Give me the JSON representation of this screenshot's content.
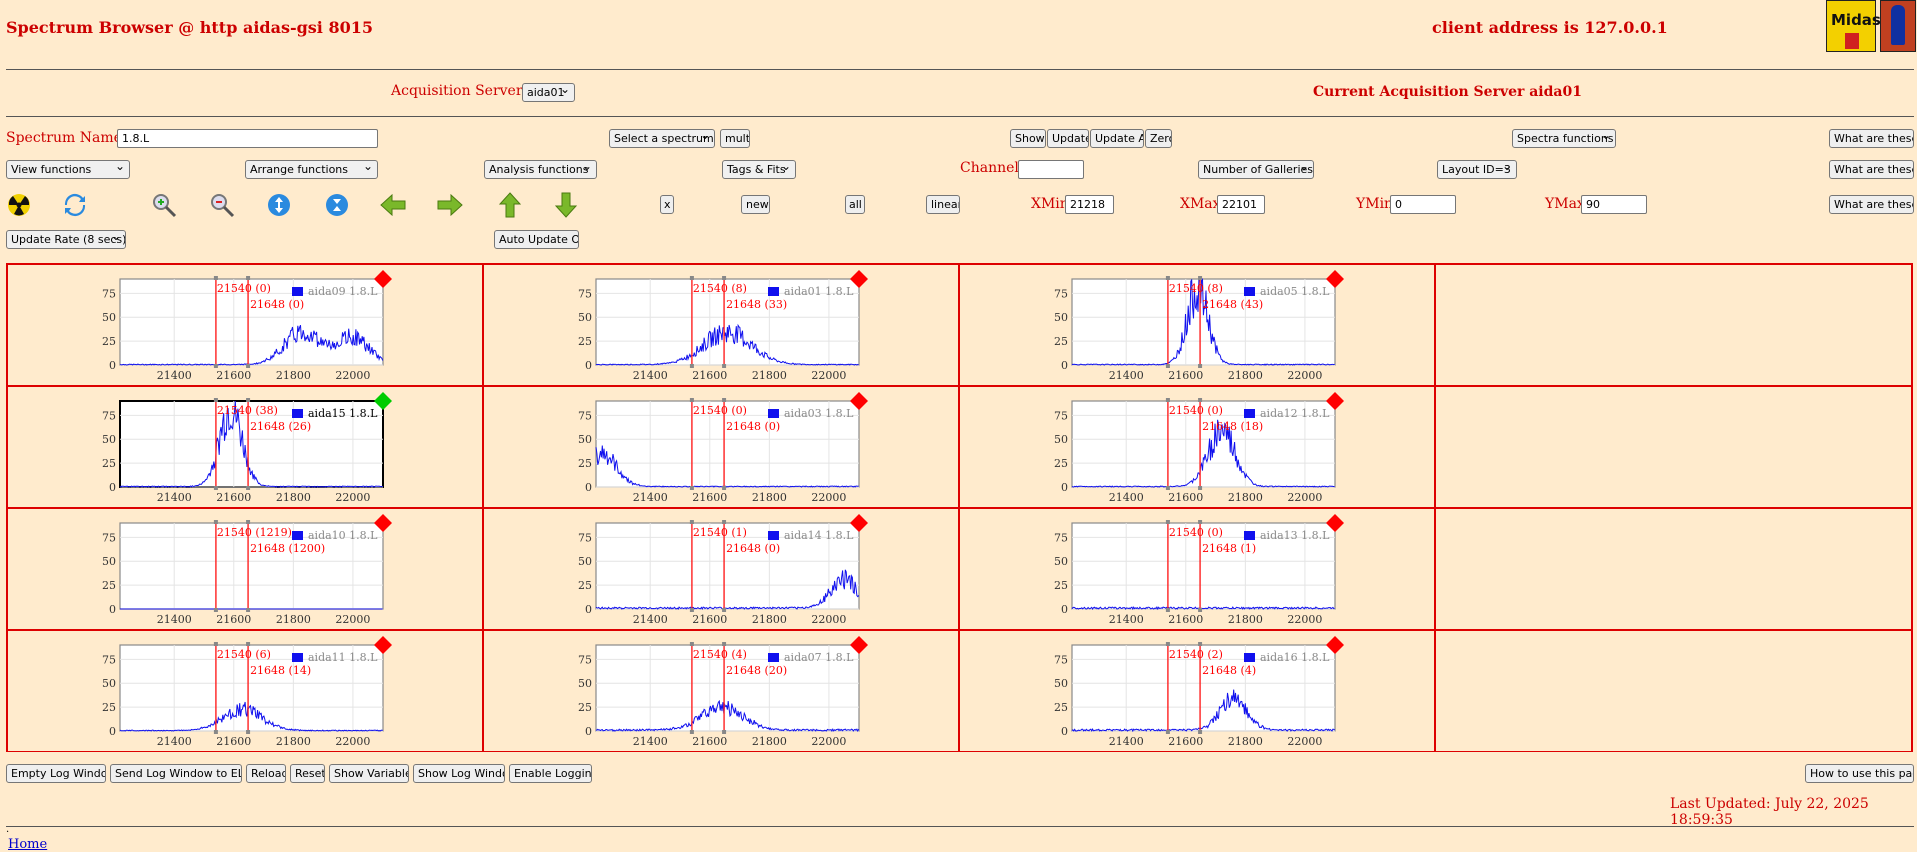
{
  "header": {
    "title": "Spectrum Browser @ http aidas-gsi 8015",
    "client_address": "client address is 127.0.0.1",
    "logo_text": "Midas"
  },
  "servers": {
    "label": "Acquisition Servers",
    "selected": "aida01",
    "current": "Current Acquisition Server aida01"
  },
  "row1": {
    "spectrum_name_label": "Spectrum Name:",
    "spectrum_name_value": "1.8.L",
    "select_spectrum": "Select a spectrum",
    "multi": "multi",
    "show": "Show",
    "update": "Update",
    "update_all": "Update All",
    "zero": "Zero",
    "spectra_functions": "Spectra functions",
    "what": "What are these?"
  },
  "row2": {
    "view_functions": "View functions",
    "arrange_functions": "Arrange functions",
    "analysis_functions": "Analysis functions",
    "tags_fits": "Tags & Fits",
    "channel_label": "Channel:",
    "channel_value": "",
    "number_of_galleries": "Number of Galleries",
    "layout": "Layout ID=3",
    "what": "What are these?"
  },
  "row3": {
    "x": "x",
    "new": "new",
    "all": "all",
    "linear": "linear",
    "xmin_label": "XMin",
    "xmin_value": "21218",
    "xmax_label": "XMax",
    "xmax_value": "22101",
    "ymin_label": "YMin",
    "ymin_value": "0",
    "ymax_label": "YMax",
    "ymax_value": "90",
    "what": "What are these?"
  },
  "row4": {
    "update_rate": "Update Rate (8 secs)",
    "auto_update": "Auto Update ON"
  },
  "chart_data": {
    "type": "line",
    "xlim": [
      21218,
      22101
    ],
    "ylim": [
      0,
      90
    ],
    "x_ticks": [
      "21400",
      "21600",
      "21800",
      "22000"
    ],
    "y_ticks": [
      "0",
      "25",
      "50",
      "75"
    ],
    "marker1_x": 21540,
    "marker2_x": 21648,
    "series": [
      {
        "name": "aida09 1.8.L",
        "m1": "21540 (0)",
        "m2": "21648 (0)",
        "status": "#ff0000",
        "selected": false,
        "peaks": [
          {
            "c": 21830,
            "s": 60,
            "a": 34
          },
          {
            "c": 22000,
            "s": 55,
            "a": 28
          }
        ],
        "base": 1
      },
      {
        "name": "aida01 1.8.L",
        "m1": "21540 (8)",
        "m2": "21648 (33)",
        "status": "#ff0000",
        "selected": false,
        "peaks": [
          {
            "c": 21660,
            "s": 80,
            "a": 34
          }
        ],
        "base": 1
      },
      {
        "name": "aida05 1.8.L",
        "m1": "21540 (8)",
        "m2": "21648 (43)",
        "status": "#ff0000",
        "selected": false,
        "peaks": [
          {
            "c": 21640,
            "s": 35,
            "a": 80
          }
        ],
        "base": 1
      },
      {
        "name": "aida15 1.8.L",
        "m1": "21540 (38)",
        "m2": "21648 (26)",
        "status": "#00cc00",
        "selected": true,
        "peaks": [
          {
            "c": 21590,
            "s": 38,
            "a": 80
          }
        ],
        "base": 1
      },
      {
        "name": "aida03 1.8.L",
        "m1": "21540 (0)",
        "m2": "21648 (0)",
        "status": "#ff0000",
        "selected": false,
        "peaks": [
          {
            "c": 21235,
            "s": 50,
            "a": 35
          }
        ],
        "base": 1
      },
      {
        "name": "aida12 1.8.L",
        "m1": "21540 (0)",
        "m2": "21648 (18)",
        "status": "#ff0000",
        "selected": false,
        "peaks": [
          {
            "c": 21720,
            "s": 45,
            "a": 58
          }
        ],
        "base": 1
      },
      {
        "name": "aida10 1.8.L",
        "m1": "21540 (1219)",
        "m2": "21648 (1200)",
        "status": "#ff0000",
        "selected": false,
        "peaks": [],
        "base": 0
      },
      {
        "name": "aida14 1.8.L",
        "m1": "21540 (1)",
        "m2": "21648 (0)",
        "status": "#ff0000",
        "selected": false,
        "peaks": [
          {
            "c": 22050,
            "s": 45,
            "a": 30
          }
        ],
        "base": 2
      },
      {
        "name": "aida13 1.8.L",
        "m1": "21540 (0)",
        "m2": "21648 (1)",
        "status": "#ff0000",
        "selected": false,
        "peaks": [],
        "base": 2
      },
      {
        "name": "aida11 1.8.L",
        "m1": "21540 (6)",
        "m2": "21648 (14)",
        "status": "#ff0000",
        "selected": false,
        "peaks": [
          {
            "c": 21630,
            "s": 65,
            "a": 22
          }
        ],
        "base": 1
      },
      {
        "name": "aida07 1.8.L",
        "m1": "21540 (4)",
        "m2": "21648 (20)",
        "status": "#ff0000",
        "selected": false,
        "peaks": [
          {
            "c": 21640,
            "s": 70,
            "a": 24
          }
        ],
        "base": 2
      },
      {
        "name": "aida16 1.8.L",
        "m1": "21540 (2)",
        "m2": "21648 (4)",
        "status": "#ff0000",
        "selected": false,
        "peaks": [
          {
            "c": 21760,
            "s": 45,
            "a": 32
          }
        ],
        "base": 2
      }
    ]
  },
  "footer": {
    "empty_log": "Empty Log Window",
    "send_log": "Send Log Window to ELog",
    "reload": "Reload",
    "reset": "Reset",
    "show_variables": "Show Variables",
    "show_log": "Show Log Window",
    "enable_logging": "Enable Logging",
    "how_to": "How to use this page",
    "last_updated": "Last Updated: July 22, 2025 18:59:35",
    "dot": ".",
    "home": "Home"
  }
}
